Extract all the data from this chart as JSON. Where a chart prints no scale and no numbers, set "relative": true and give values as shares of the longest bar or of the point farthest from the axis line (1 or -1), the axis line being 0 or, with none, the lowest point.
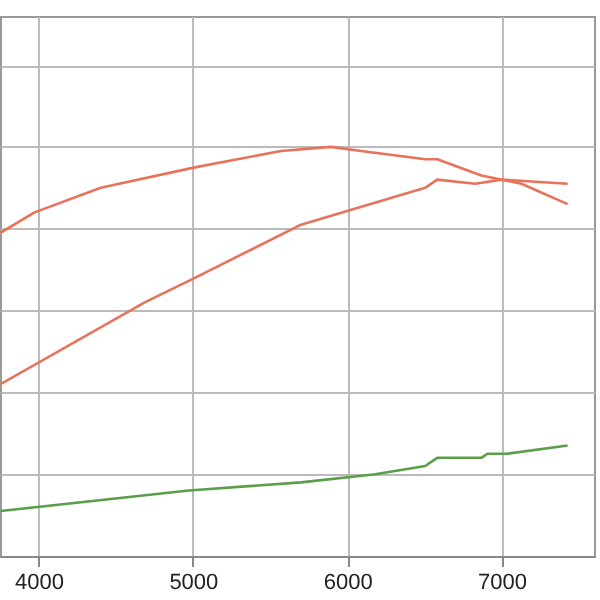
{
  "chart_data": {
    "type": "line",
    "relative": true,
    "xlim": [
      3750,
      7600
    ],
    "xticks": [
      4000,
      5000,
      6000,
      7000
    ],
    "grid": true,
    "legend": false,
    "series": [
      {
        "color": "#e8735a",
        "x": [
          3753,
          3974,
          4403,
          5013,
          5571,
          5896,
          6091,
          6506,
          6584,
          6870,
          7130,
          7429
        ],
        "values": [
          0.79,
          0.84,
          0.9,
          0.95,
          0.99,
          1,
          0.99,
          0.97,
          0.97,
          0.93,
          0.91,
          0.86
        ]
      },
      {
        "color": "#e8735a",
        "x": [
          3753,
          4688,
          5013,
          5701,
          6506,
          6584,
          6831,
          7000,
          7429
        ],
        "values": [
          0.42,
          0.62,
          0.68,
          0.81,
          0.9,
          0.92,
          0.91,
          0.92,
          0.91
        ]
      },
      {
        "color": "#5a9e4a",
        "x": [
          3753,
          4974,
          5701,
          6182,
          6506,
          6584,
          6870,
          6909,
          7039,
          7429
        ],
        "values": [
          0.11,
          0.16,
          0.18,
          0.2,
          0.22,
          0.24,
          0.24,
          0.25,
          0.25,
          0.27
        ]
      }
    ]
  }
}
